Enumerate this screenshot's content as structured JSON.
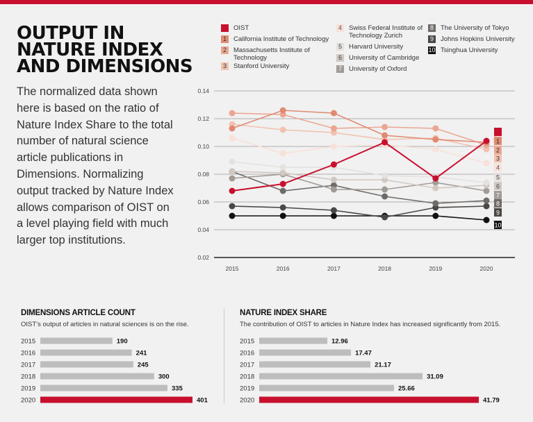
{
  "title": "OUTPUT IN NATURE INDEX AND DIMENSIONS",
  "intro": "The normalized data shown here is based on the ratio of Nature Index Share to the total number of natural science article publications in Dimensions. Normalizing output tracked by Nature Index allows comparison of OIST on a level playing field with much larger top institutions.",
  "chart_data": [
    {
      "type": "line",
      "x": [
        "2015",
        "2016",
        "2017",
        "2018",
        "2019",
        "2020"
      ],
      "ylim": [
        0.02,
        0.14
      ],
      "yticks": [
        "0.14",
        "0.12",
        "0.10",
        "0.08",
        "0.06",
        "0.04",
        "0.02"
      ],
      "grid": true,
      "legend_position": "top",
      "series": [
        {
          "name": "OIST",
          "label": "",
          "color": "#c8102e",
          "text_color": "#fff",
          "values": [
            0.068,
            0.073,
            0.087,
            0.103,
            0.077,
            0.104
          ]
        },
        {
          "name": "California Institute of Technology",
          "label": "1",
          "color": "#e08a72",
          "text_color": "#333",
          "values": [
            0.113,
            0.126,
            0.124,
            0.108,
            0.105,
            0.103
          ]
        },
        {
          "name": "Massachusetts Institute of Technology",
          "label": "2",
          "color": "#eba692",
          "text_color": "#333",
          "values": [
            0.124,
            0.123,
            0.113,
            0.114,
            0.113,
            0.101
          ]
        },
        {
          "name": "Stanford University",
          "label": "3",
          "color": "#f2c1b0",
          "text_color": "#333",
          "values": [
            0.116,
            0.112,
            0.11,
            0.105,
            0.106,
            0.098
          ]
        },
        {
          "name": "Swiss Federal Institute of Technology Zurich",
          "label": "4",
          "color": "#f8e1d8",
          "text_color": "#555",
          "values": [
            0.106,
            0.095,
            0.1,
            0.101,
            0.098,
            0.088
          ]
        },
        {
          "name": "Harvard University",
          "label": "5",
          "color": "#e4e1de",
          "text_color": "#444",
          "values": [
            0.089,
            0.085,
            0.085,
            0.079,
            0.078,
            0.074
          ]
        },
        {
          "name": "University of Cambridge",
          "label": "6",
          "color": "#d1c8c2",
          "text_color": "#444",
          "values": [
            0.082,
            0.081,
            0.076,
            0.076,
            0.07,
            0.072
          ]
        },
        {
          "name": "University of Oxford",
          "label": "7",
          "color": "#a29b95",
          "text_color": "#fff",
          "values": [
            0.077,
            0.08,
            0.069,
            0.069,
            0.074,
            0.068
          ]
        },
        {
          "name": "The University of Tokyo",
          "label": "8",
          "color": "#6f6b68",
          "text_color": "#fff",
          "values": [
            0.082,
            0.068,
            0.072,
            0.064,
            0.059,
            0.061
          ]
        },
        {
          "name": "Johns Hopkins University",
          "label": "9",
          "color": "#4a4745",
          "text_color": "#fff",
          "values": [
            0.057,
            0.056,
            0.054,
            0.049,
            0.056,
            0.057
          ]
        },
        {
          "name": "Tsinghua University",
          "label": "10",
          "color": "#111111",
          "text_color": "#fff",
          "values": [
            0.05,
            0.05,
            0.05,
            0.05,
            0.05,
            0.047
          ]
        }
      ]
    },
    {
      "type": "bar",
      "title": "DIMENSIONS ARTICLE COUNT",
      "subtitle": "OIST’s output of articles in natural sciences is on the rise.",
      "categories": [
        "2015",
        "2016",
        "2017",
        "2018",
        "2019",
        "2020"
      ],
      "values": [
        190,
        241,
        245,
        300,
        335,
        401
      ],
      "value_labels": [
        "190",
        "241",
        "245",
        "300",
        "335",
        "401"
      ],
      "highlight": "2020",
      "bar_color": "#bdbdbd",
      "highlight_color": "#c8102e"
    },
    {
      "type": "bar",
      "title": "NATURE INDEX SHARE",
      "subtitle": "The contribution of OIST to articles in Nature Index has increased significantly from 2015.",
      "categories": [
        "2015",
        "2016",
        "2017",
        "2018",
        "2019",
        "2020"
      ],
      "values": [
        12.96,
        17.47,
        21.17,
        31.09,
        25.66,
        41.79
      ],
      "value_labels": [
        "12.96",
        "17.47",
        "21.17",
        "31.09",
        "25.66",
        "41.79"
      ],
      "highlight": "2020",
      "bar_color": "#bdbdbd",
      "highlight_color": "#c8102e"
    }
  ]
}
